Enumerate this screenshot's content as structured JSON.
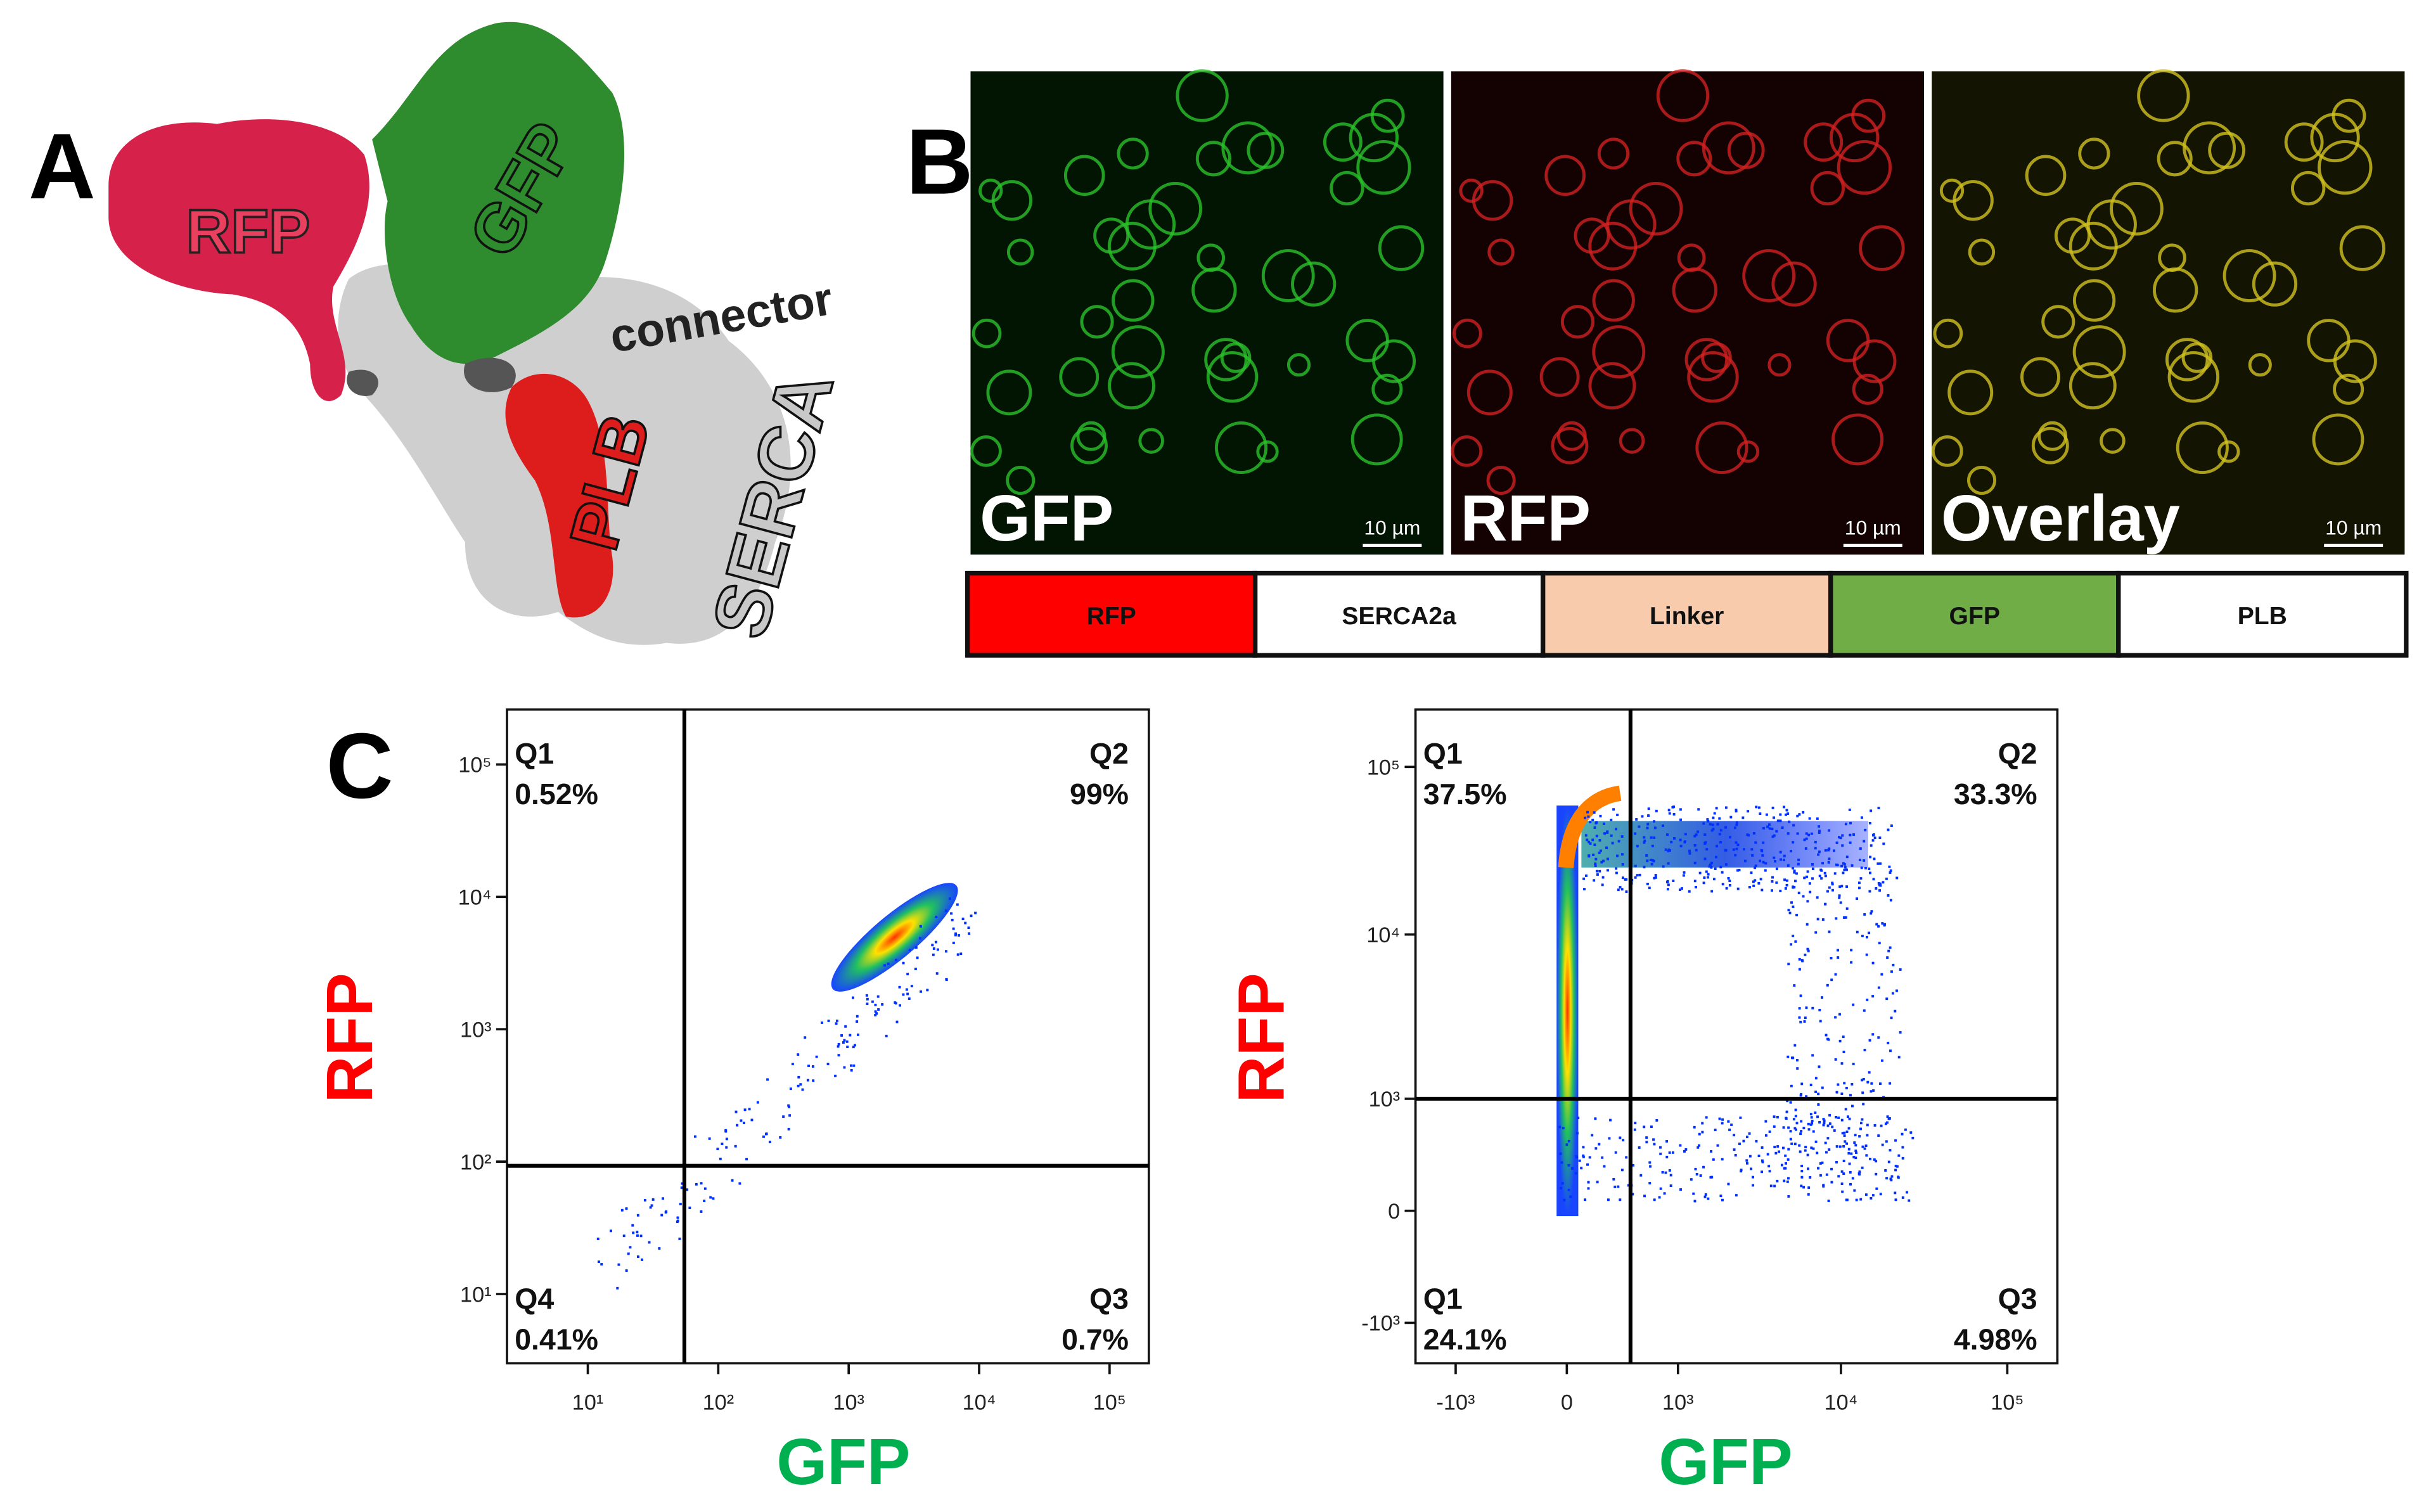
{
  "panel_a": {
    "label": "A",
    "labels": {
      "rfp": "RFP",
      "gfp": "GFP",
      "connector": "connector",
      "plb": "PLB",
      "serca": "SERCA"
    }
  },
  "panel_b": {
    "label": "B",
    "images": [
      {
        "channel": "GFP",
        "scale_bar": "10 µm"
      },
      {
        "channel": "RFP",
        "scale_bar": "10 µm"
      },
      {
        "channel": "Overlay",
        "scale_bar": "10 µm"
      }
    ],
    "construct": [
      {
        "name": "RFP",
        "color": "#ff0000"
      },
      {
        "name": "SERCA2a",
        "color": "#ffffff"
      },
      {
        "name": "Linker",
        "color": "#f8cbad"
      },
      {
        "name": "GFP",
        "color": "#70ad47"
      },
      {
        "name": "PLB",
        "color": "#ffffff"
      }
    ]
  },
  "panel_c": {
    "label": "C",
    "plots": [
      {
        "scale": "log",
        "xlim": [
          2.4,
          200000
        ],
        "ylim": [
          3,
          260000
        ],
        "xticks": [
          {
            "value": 10,
            "label": "10¹"
          },
          {
            "value": 100,
            "label": "10²"
          },
          {
            "value": 1000,
            "label": "10³"
          },
          {
            "value": 10000,
            "label": "10⁴"
          },
          {
            "value": 100000,
            "label": "10⁵"
          }
        ],
        "yticks": [
          {
            "value": 10,
            "label": "10¹"
          },
          {
            "value": 100,
            "label": "10²"
          },
          {
            "value": 1000,
            "label": "10³"
          },
          {
            "value": 10000,
            "label": "10⁴"
          },
          {
            "value": 100000,
            "label": "10⁵"
          }
        ],
        "gate": {
          "x": 55,
          "y": 93
        },
        "x_label": "GFP",
        "y_label": "RFP",
        "quadrants": [
          {
            "name": "Q1",
            "percent": "0.52%"
          },
          {
            "name": "Q2",
            "percent": "99%"
          },
          {
            "name": "Q4",
            "percent": "0.41%"
          },
          {
            "name": "Q3",
            "percent": "0.7%"
          }
        ]
      },
      {
        "scale": "biexponential",
        "xlim": [
          -1800,
          200000
        ],
        "ylim": [
          -1800,
          220000
        ],
        "xticks": [
          {
            "value": -1000,
            "label": "-10³"
          },
          0,
          {
            "value": 1000,
            "label": "10³"
          },
          {
            "value": 10000,
            "label": "10⁴"
          },
          {
            "value": 100000,
            "label": "10⁵"
          }
        ],
        "yticks": [
          {
            "value": -1000,
            "label": "-10³"
          },
          0,
          {
            "value": 1000,
            "label": "10³"
          },
          {
            "value": 10000,
            "label": "10⁴"
          },
          {
            "value": 100000,
            "label": "10⁵"
          }
        ],
        "gate": {
          "x": 450,
          "y": 1000
        },
        "x_label": "GFP",
        "y_label": "RFP",
        "quadrants": [
          {
            "name": "Q1",
            "percent": "37.5%"
          },
          {
            "name": "Q2",
            "percent": "33.3%"
          },
          {
            "name": "Q1",
            "percent": "24.1%"
          },
          {
            "name": "Q3",
            "percent": "4.98%"
          }
        ]
      }
    ]
  }
}
